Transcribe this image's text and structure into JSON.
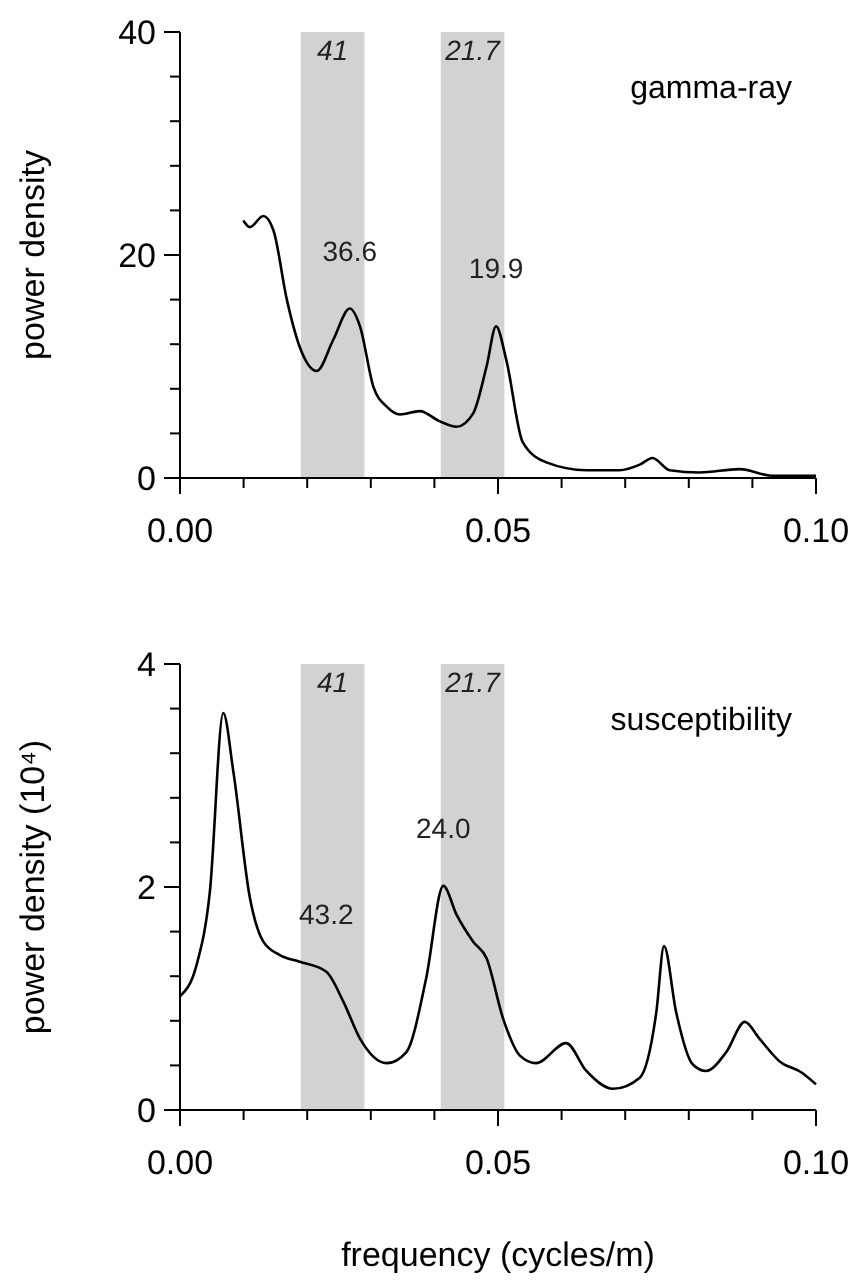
{
  "chart_data": [
    {
      "type": "line",
      "ylabel": "power density",
      "legend": "top right",
      "series": [
        {
          "name": "gamma-ray",
          "color": "#000000",
          "x": [
            0.00995,
            0.011,
            0.0131,
            0.0147,
            0.0168,
            0.0188,
            0.0215,
            0.0241,
            0.0267,
            0.0283,
            0.0304,
            0.0325,
            0.0346,
            0.0377,
            0.0408,
            0.0435,
            0.0461,
            0.0482,
            0.0497,
            0.0513,
            0.0539,
            0.0576,
            0.0639,
            0.0691,
            0.0723,
            0.0743,
            0.077,
            0.0817,
            0.088,
            0.0932,
            0.1
          ],
          "values": [
            23.1,
            22.5,
            23.5,
            22.2,
            16.0,
            11.8,
            9.6,
            12.4,
            15.2,
            13.6,
            8.2,
            6.4,
            5.7,
            6.0,
            5.1,
            4.6,
            5.8,
            10.0,
            13.6,
            10.6,
            3.2,
            1.4,
            0.7,
            0.7,
            1.2,
            1.8,
            0.7,
            0.5,
            0.8,
            0.2,
            0.2
          ]
        }
      ],
      "xlim": [
        0,
        0.1
      ],
      "xticks": [
        {
          "value": 0,
          "label": "0.00"
        },
        {
          "value": 0.01,
          "label": null
        },
        {
          "value": 0.02,
          "label": null
        },
        {
          "value": 0.03,
          "label": null
        },
        {
          "value": 0.04,
          "label": null
        },
        {
          "value": 0.05,
          "label": "0.05"
        },
        {
          "value": 0.06,
          "label": null
        },
        {
          "value": 0.07,
          "label": null
        },
        {
          "value": 0.08,
          "label": null
        },
        {
          "value": 0.09,
          "label": null
        },
        {
          "value": 0.1,
          "label": "0.10"
        }
      ],
      "ylim": [
        0,
        40
      ],
      "yticks": [
        0,
        {
          "value": 4,
          "label": null
        },
        {
          "value": 8,
          "label": null
        },
        {
          "value": 12,
          "label": null
        },
        {
          "value": 16,
          "label": null
        },
        20,
        {
          "value": 24,
          "label": null
        },
        {
          "value": 28,
          "label": null
        },
        {
          "value": 32,
          "label": null
        },
        {
          "value": 36,
          "label": null
        },
        40
      ],
      "bands": [
        {
          "axis": "x",
          "from": 0.019,
          "to": 0.029,
          "label": "41",
          "color": "#d1d2d4"
        },
        {
          "axis": "x",
          "from": 0.041,
          "to": 0.051,
          "label": "21.7",
          "color": "#d1d2d4"
        }
      ],
      "annotations": [
        {
          "text": "36.6",
          "x": 0.0267,
          "y": 15.2
        },
        {
          "text": "19.9",
          "x": 0.0497,
          "y": 13.6
        }
      ]
    },
    {
      "type": "line",
      "ylabel": "power density (10⁴)",
      "xlabel": "frequency (cycles/m)",
      "legend": "top right",
      "series": [
        {
          "name": "susceptibility",
          "color": "#000000",
          "x": [
            0,
            0.0026,
            0.0047,
            0.0068,
            0.0084,
            0.011,
            0.0131,
            0.0157,
            0.0188,
            0.023,
            0.0257,
            0.0283,
            0.0325,
            0.0356,
            0.0387,
            0.0414,
            0.0435,
            0.0461,
            0.0482,
            0.0508,
            0.0534,
            0.056,
            0.0607,
            0.0639,
            0.0681,
            0.0723,
            0.0749,
            0.0761,
            0.078,
            0.0806,
            0.0827,
            0.0859,
            0.0888,
            0.0911,
            0.0942,
            0.0979,
            0.1
          ],
          "values": [
            1.02,
            1.3,
            1.96,
            3.56,
            3.03,
            1.9,
            1.51,
            1.39,
            1.33,
            1.24,
            0.97,
            0.64,
            0.42,
            0.52,
            1.18,
            2.01,
            1.75,
            1.51,
            1.36,
            0.82,
            0.49,
            0.42,
            0.6,
            0.35,
            0.19,
            0.29,
            0.88,
            1.47,
            0.88,
            0.41,
            0.35,
            0.52,
            0.79,
            0.64,
            0.44,
            0.33,
            0.23
          ]
        }
      ],
      "xlim": [
        0,
        0.1
      ],
      "xticks": [
        {
          "value": 0,
          "label": "0.00"
        },
        {
          "value": 0.01,
          "label": null
        },
        {
          "value": 0.02,
          "label": null
        },
        {
          "value": 0.03,
          "label": null
        },
        {
          "value": 0.04,
          "label": null
        },
        {
          "value": 0.05,
          "label": "0.05"
        },
        {
          "value": 0.06,
          "label": null
        },
        {
          "value": 0.07,
          "label": null
        },
        {
          "value": 0.08,
          "label": null
        },
        {
          "value": 0.09,
          "label": null
        },
        {
          "value": 0.1,
          "label": "0.10"
        }
      ],
      "ylim": [
        0,
        4
      ],
      "yticks": [
        0,
        {
          "value": 0.4,
          "label": null
        },
        {
          "value": 0.8,
          "label": null
        },
        {
          "value": 1.2,
          "label": null
        },
        {
          "value": 1.6,
          "label": null
        },
        2,
        {
          "value": 2.4,
          "label": null
        },
        {
          "value": 2.8,
          "label": null
        },
        {
          "value": 3.2,
          "label": null
        },
        {
          "value": 3.6,
          "label": null
        },
        4
      ],
      "bands": [
        {
          "axis": "x",
          "from": 0.019,
          "to": 0.029,
          "label": "41",
          "color": "#d1d2d4"
        },
        {
          "axis": "x",
          "from": 0.041,
          "to": 0.051,
          "label": "21.7",
          "color": "#d1d2d4"
        }
      ],
      "annotations": [
        {
          "text": "43.2",
          "x": 0.023,
          "y": 1.24
        },
        {
          "text": "24.0",
          "x": 0.0414,
          "y": 2.01
        }
      ]
    }
  ]
}
